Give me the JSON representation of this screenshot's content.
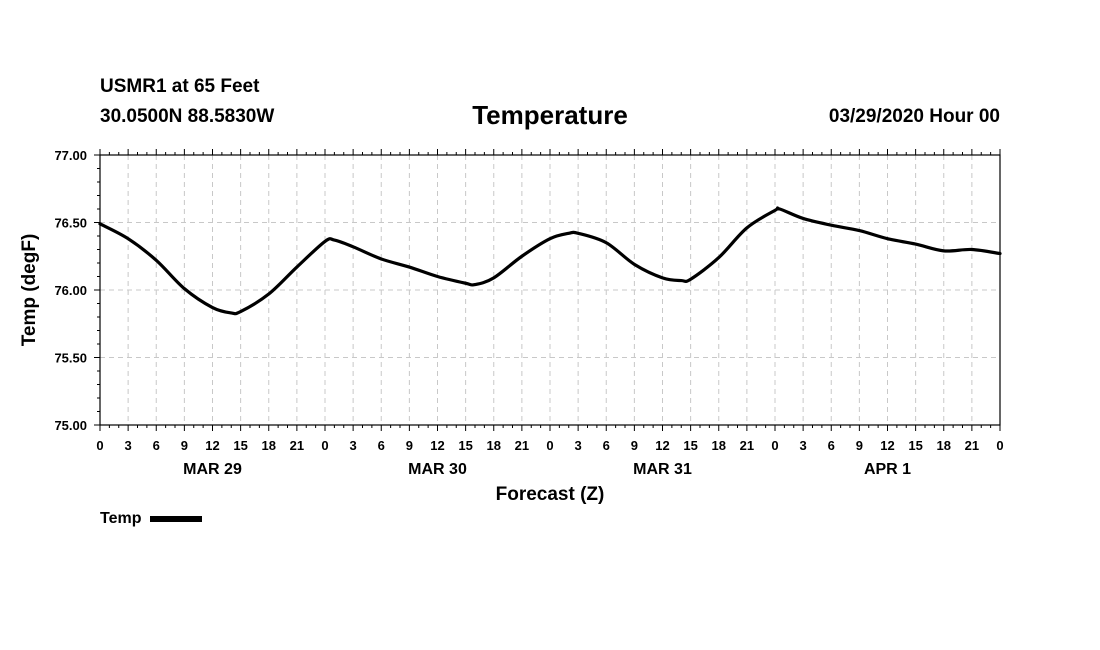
{
  "header": {
    "station": "USMR1 at 65 Feet",
    "coords": "30.0500N 88.5830W",
    "title": "Temperature",
    "datestamp": "03/29/2020 Hour 00"
  },
  "chart_data": {
    "type": "line",
    "title": "Temperature",
    "xlabel": "Forecast (Z)",
    "ylabel": "Temp (degF)",
    "ylim": [
      75.0,
      77.0
    ],
    "yticks": [
      "75.00",
      "75.50",
      "76.00",
      "76.50",
      "77.00"
    ],
    "xlim": [
      0,
      96
    ],
    "xtick_labels": [
      "0",
      "3",
      "6",
      "9",
      "12",
      "15",
      "18",
      "21",
      "0",
      "3",
      "6",
      "9",
      "12",
      "15",
      "18",
      "21",
      "0",
      "3",
      "6",
      "9",
      "12",
      "15",
      "18",
      "21",
      "0",
      "3",
      "6",
      "9",
      "12",
      "15",
      "18",
      "21",
      "0"
    ],
    "day_labels": [
      {
        "label": "MAR 29",
        "hour": 12
      },
      {
        "label": "MAR 30",
        "hour": 36
      },
      {
        "label": "MAR 31",
        "hour": 60
      },
      {
        "label": "APR 1",
        "hour": 84
      }
    ],
    "grid": true,
    "series": [
      {
        "name": "Temp",
        "color": "#000000",
        "x": [
          0,
          3,
          6,
          9,
          12,
          14,
          15,
          18,
          21,
          24,
          25,
          27,
          30,
          33,
          36,
          39,
          40,
          42,
          45,
          48,
          50,
          51,
          54,
          57,
          60,
          62,
          63,
          66,
          69,
          72,
          72.5,
          75,
          78,
          81,
          84,
          87,
          90,
          93,
          96
        ],
        "y": [
          76.49,
          76.38,
          76.22,
          76.01,
          75.87,
          75.83,
          75.84,
          75.97,
          76.17,
          76.36,
          76.37,
          76.32,
          76.23,
          76.17,
          76.1,
          76.05,
          76.04,
          76.09,
          76.25,
          76.38,
          76.42,
          76.42,
          76.35,
          76.19,
          76.09,
          76.07,
          76.08,
          76.24,
          76.46,
          76.59,
          76.6,
          76.53,
          76.48,
          76.44,
          76.38,
          76.34,
          76.29,
          76.3,
          76.27
        ]
      }
    ],
    "legend": "bottom-left"
  },
  "legend": {
    "label": "Temp"
  }
}
